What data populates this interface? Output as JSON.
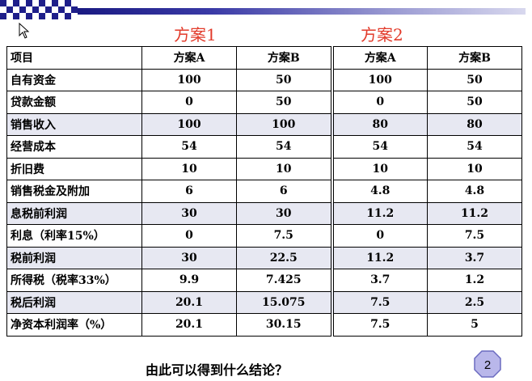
{
  "titles": {
    "scheme1": "方案1",
    "scheme2": "方案2"
  },
  "header": [
    "项目",
    "方案A",
    "方案B",
    "方案A",
    "方案B"
  ],
  "rows": [
    [
      "自有资金",
      "100",
      "50",
      "100",
      "50"
    ],
    [
      "贷款金额",
      "0",
      "50",
      "0",
      "50"
    ],
    [
      "销售收入",
      "100",
      "100",
      "80",
      "80"
    ],
    [
      "经营成本",
      "54",
      "54",
      "54",
      "54"
    ],
    [
      "折旧费",
      "10",
      "10",
      "10",
      "10"
    ],
    [
      "销售税金及附加",
      "6",
      "6",
      "4.8",
      "4.8"
    ],
    [
      "息税前利润",
      "30",
      "30",
      "11.2",
      "11.2"
    ],
    [
      "利息（利率15%）",
      "0",
      "7.5",
      "0",
      "7.5"
    ],
    [
      "税前利润",
      "30",
      "22.5",
      "11.2",
      "3.7"
    ],
    [
      "所得税（税率33%）",
      "9.9",
      "7.425",
      "3.7",
      "1.2"
    ],
    [
      "税后利润",
      "20.1",
      "15.075",
      "7.5",
      "2.5"
    ],
    [
      "净资本利润率（%）",
      "20.1",
      "30.15",
      "7.5",
      "5"
    ]
  ],
  "conclusion": "由此可以得到什么结论？",
  "page_number": "2",
  "colors": {
    "scheme_title": "#e23a2a",
    "row_shade": "#e7e8f2",
    "badge_fill": "#b9b7ea",
    "header_bar": "#1f1f8a"
  }
}
